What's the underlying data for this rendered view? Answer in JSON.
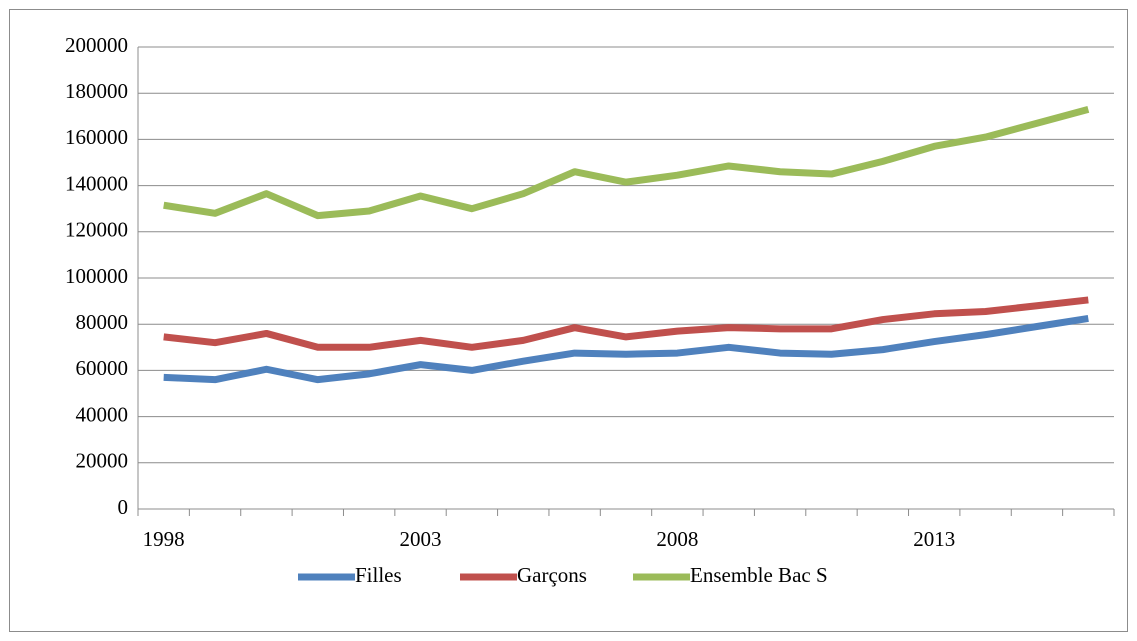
{
  "chart_data": {
    "type": "line",
    "categories": [
      "1998",
      null,
      null,
      null,
      null,
      "2003",
      null,
      null,
      null,
      null,
      "2008",
      null,
      null,
      null,
      null,
      "2013",
      null,
      null,
      null
    ],
    "series": [
      {
        "name": "Filles",
        "color": "#4f81bd",
        "values": [
          57000,
          56000,
          60500,
          56000,
          58500,
          62500,
          60000,
          64000,
          67500,
          67000,
          67500,
          70000,
          67500,
          67000,
          69000,
          72500,
          75500,
          79000,
          82500
        ]
      },
      {
        "name": "Garçons",
        "color": "#c0504d",
        "values": [
          74500,
          72000,
          76000,
          70000,
          70000,
          73000,
          70000,
          73000,
          78500,
          74500,
          77000,
          78500,
          78000,
          78000,
          82000,
          84500,
          85500,
          88000,
          90500
        ]
      },
      {
        "name": "Ensemble Bac S",
        "color": "#9bbb59",
        "values": [
          131500,
          128000,
          136500,
          127000,
          129000,
          135500,
          130000,
          136500,
          146000,
          141500,
          144500,
          148500,
          146000,
          145000,
          150500,
          157000,
          161000,
          167000,
          173000
        ]
      }
    ],
    "ylim": [
      0,
      200000
    ],
    "yticks": [
      0,
      20000,
      40000,
      60000,
      80000,
      100000,
      120000,
      140000,
      160000,
      180000,
      200000
    ],
    "grid": true,
    "legend": "bottom"
  }
}
